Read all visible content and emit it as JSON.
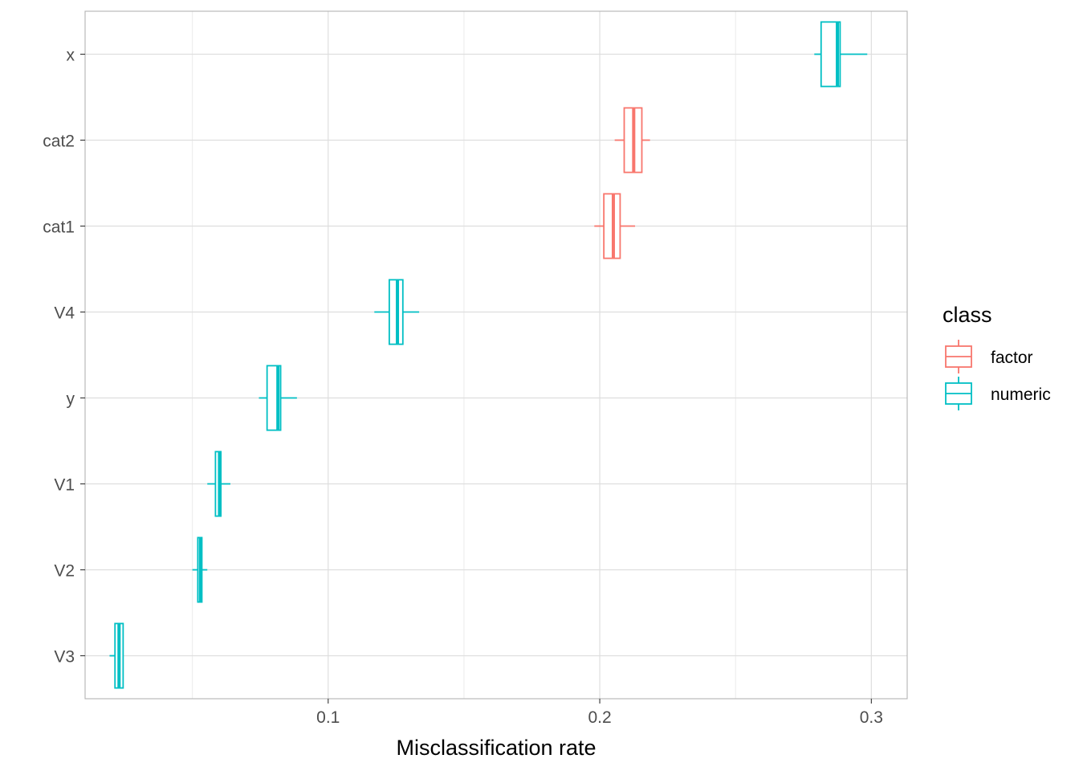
{
  "chart_data": {
    "type": "boxplot",
    "orientation": "horizontal",
    "title": "",
    "xlabel": "Misclassification rate",
    "ylabel": "",
    "xlim": [
      0.0105,
      0.3132
    ],
    "x_ticks": [
      0.1,
      0.2,
      0.3
    ],
    "x_tick_labels": [
      "0.1",
      "0.2",
      "0.3"
    ],
    "categories": [
      "V3",
      "V2",
      "V1",
      "y",
      "V4",
      "cat1",
      "cat2",
      "x"
    ],
    "grid": true,
    "legend": {
      "title": "class",
      "position": "right",
      "entries": [
        {
          "name": "factor",
          "color": "#F8766D"
        },
        {
          "name": "numeric",
          "color": "#00BFC4"
        }
      ]
    },
    "series": [
      {
        "category": "x",
        "class": "numeric",
        "color": "#00BFC4",
        "min": 0.279,
        "q1": 0.2815,
        "median": 0.2875,
        "q3": 0.2885,
        "max": 0.2985
      },
      {
        "category": "cat2",
        "class": "factor",
        "color": "#F8766D",
        "min": 0.2055,
        "q1": 0.209,
        "median": 0.2125,
        "q3": 0.2155,
        "max": 0.2185
      },
      {
        "category": "cat1",
        "class": "factor",
        "color": "#F8766D",
        "min": 0.198,
        "q1": 0.2015,
        "median": 0.205,
        "q3": 0.2075,
        "max": 0.213
      },
      {
        "category": "V4",
        "class": "numeric",
        "color": "#00BFC4",
        "min": 0.117,
        "q1": 0.1225,
        "median": 0.1255,
        "q3": 0.1275,
        "max": 0.1335
      },
      {
        "category": "y",
        "class": "numeric",
        "color": "#00BFC4",
        "min": 0.0745,
        "q1": 0.0775,
        "median": 0.0815,
        "q3": 0.0825,
        "max": 0.0885
      },
      {
        "category": "V1",
        "class": "numeric",
        "color": "#00BFC4",
        "min": 0.0555,
        "q1": 0.0585,
        "median": 0.06,
        "q3": 0.0605,
        "max": 0.064
      },
      {
        "category": "V2",
        "class": "numeric",
        "color": "#00BFC4",
        "min": 0.05,
        "q1": 0.052,
        "median": 0.053,
        "q3": 0.0535,
        "max": 0.0555
      },
      {
        "category": "V3",
        "class": "numeric",
        "color": "#00BFC4",
        "min": 0.0195,
        "q1": 0.0215,
        "median": 0.023,
        "q3": 0.0245,
        "max": 0.0245
      }
    ]
  }
}
